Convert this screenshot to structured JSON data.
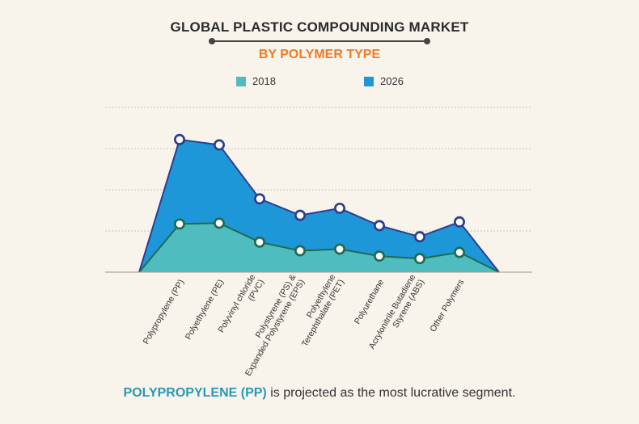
{
  "header": {
    "title": "GLOBAL PLASTIC COMPOUNDING MARKET",
    "subtitle": "BY POLYMER TYPE"
  },
  "footer": {
    "highlight": "POLYPROPYLENE (PP)",
    "text": " is projected as the most lucrative segment."
  },
  "colors": {
    "series_2018": "#4fbcbf",
    "series_2026": "#1e97d8",
    "line_2018": "#1f6b52",
    "line_2026": "#2f3d8f"
  },
  "chart_data": {
    "type": "area",
    "categories": [
      [
        "Polypropylene (PP)"
      ],
      [
        "Polyethylene (PE)"
      ],
      [
        "Polyvinyl chloride",
        "(PVC)"
      ],
      [
        "Polystyrene (PS) &",
        "Expanded Polystyrene (EPS)"
      ],
      [
        "Polyethylene",
        "Terephthalate (PET)"
      ],
      [
        "Polyurethane"
      ],
      [
        "Acrylonitrile Butadiene",
        "Styrene (ABS)"
      ],
      [
        "Other Polymers"
      ]
    ],
    "series": [
      {
        "name": "2018",
        "values": [
          1.17,
          1.19,
          0.73,
          0.52,
          0.56,
          0.39,
          0.33,
          0.48
        ]
      },
      {
        "name": "2026",
        "values": [
          3.22,
          3.09,
          1.78,
          1.38,
          1.55,
          1.13,
          0.86,
          1.22
        ]
      }
    ],
    "ylim": [
      0,
      4
    ],
    "grid": true,
    "legend": "top"
  }
}
